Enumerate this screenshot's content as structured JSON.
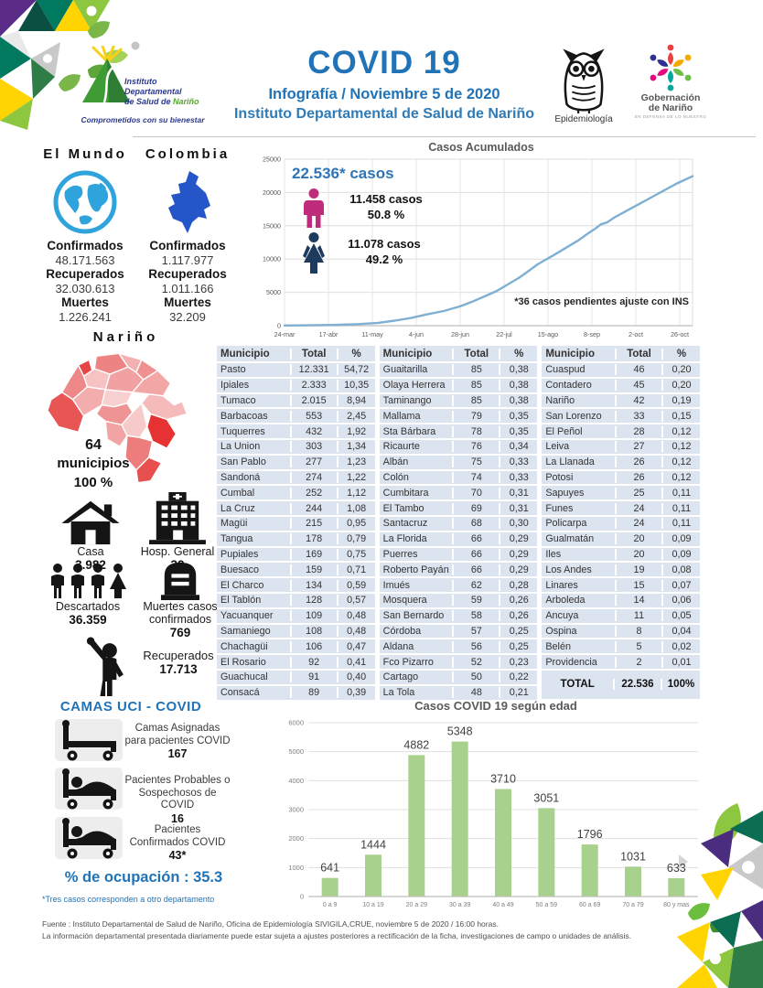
{
  "header": {
    "title": "COVID 19",
    "subtitle": "Infografía / Noviembre 5 de 2020",
    "subtitle2": "Instituto Departamental de Salud de Nariño",
    "idsn_logo": {
      "line1": "Instituto",
      "line2": "Departamental",
      "line3": "de Salud de",
      "line3b": "Nariño",
      "tagline": "Comprometidos con su bienestar"
    },
    "owl_caption": "Epidemiología",
    "gob_caption1": "Gobernación",
    "gob_caption2": "de Nariño",
    "gob_tagline": "EN DEFENSA DE LO NUESTRO"
  },
  "world": {
    "title": "El Mundo",
    "items": [
      {
        "label": "Confirmados",
        "value": "48.171.563"
      },
      {
        "label": "Recuperados",
        "value": "32.030.613"
      },
      {
        "label": "Muertes",
        "value": "1.226.241"
      }
    ]
  },
  "colombia": {
    "title": "Colombia",
    "items": [
      {
        "label": "Confirmados",
        "value": "1.117.977"
      },
      {
        "label": "Recuperados",
        "value": "1.011.166"
      },
      {
        "label": "Muertes",
        "value": "32.209"
      }
    ]
  },
  "gender": {
    "total": "22.536* casos",
    "male_cases": "11.458 casos",
    "male_pct": "50.8 %",
    "female_cases": "11.078 casos",
    "female_pct": "49.2 %",
    "note": "*36 casos pendientes ajuste con INS"
  },
  "narino": {
    "title": "Nariño",
    "muni_line1": "64",
    "muni_line2": "municipios",
    "muni_line3": "100 %",
    "casa_label": "Casa",
    "casa_value": "3.982",
    "hosp_label": "Hosp. General",
    "hosp_value": "32",
    "descartados_label": "Descartados",
    "descartados_value": "36.359",
    "muertes_label": "Muertes casos confirmados",
    "muertes_value": "769",
    "recuperados_label": "Recuperados",
    "recuperados_value": "17.713"
  },
  "camas": {
    "title": "CAMAS UCI - COVID",
    "items": [
      {
        "label": "Camas Asignadas para pacientes COVID",
        "value": "167"
      },
      {
        "label": "Pacientes Probables o Sospechosos de COVID",
        "value": "16"
      },
      {
        "label": "Pacientes Confirmados COVID",
        "value": "43*"
      }
    ],
    "ocupacion": "% de ocupación : 35.3",
    "note": "*Tres casos corresponden a otro departamento"
  },
  "table": {
    "headers": [
      "Municipio",
      "Total",
      "%"
    ],
    "groups": [
      [
        [
          "Pasto",
          "12.331",
          "54,72"
        ],
        [
          "Ipiales",
          "2.333",
          "10,35"
        ],
        [
          "Tumaco",
          "2.015",
          "8,94"
        ],
        [
          "Barbacoas",
          "553",
          "2,45"
        ],
        [
          "Tuquerres",
          "432",
          "1,92"
        ],
        [
          "La Union",
          "303",
          "1,34"
        ],
        [
          "San Pablo",
          "277",
          "1,23"
        ],
        [
          "Sandoná",
          "274",
          "1,22"
        ],
        [
          "Cumbal",
          "252",
          "1,12"
        ],
        [
          "La Cruz",
          "244",
          "1,08"
        ],
        [
          "Magüi",
          "215",
          "0,95"
        ],
        [
          "Tangua",
          "178",
          "0,79"
        ],
        [
          "Pupiales",
          "169",
          "0,75"
        ],
        [
          "Buesaco",
          "159",
          "0,71"
        ],
        [
          "El Charco",
          "134",
          "0,59"
        ],
        [
          "El Tablón",
          "128",
          "0,57"
        ],
        [
          "Yacuanquer",
          "109",
          "0,48"
        ],
        [
          "Samaniego",
          "108",
          "0,48"
        ],
        [
          "Chachagüi",
          "106",
          "0,47"
        ],
        [
          "El Rosario",
          "92",
          "0,41"
        ],
        [
          "Guachucal",
          "91",
          "0,40"
        ],
        [
          "Consacá",
          "89",
          "0,39"
        ]
      ],
      [
        [
          "Guaitarilla",
          "85",
          "0,38"
        ],
        [
          "Olaya Herrera",
          "85",
          "0,38"
        ],
        [
          "Taminango",
          "85",
          "0,38"
        ],
        [
          "Mallama",
          "79",
          "0,35"
        ],
        [
          "Sta Bárbara",
          "78",
          "0,35"
        ],
        [
          "Ricaurte",
          "76",
          "0,34"
        ],
        [
          "Albán",
          "75",
          "0,33"
        ],
        [
          "Colón",
          "74",
          "0,33"
        ],
        [
          "Cumbitara",
          "70",
          "0,31"
        ],
        [
          "El Tambo",
          "69",
          "0,31"
        ],
        [
          "Santacruz",
          "68",
          "0,30"
        ],
        [
          "La Florida",
          "66",
          "0,29"
        ],
        [
          "Puerres",
          "66",
          "0,29"
        ],
        [
          "Roberto Payán",
          "66",
          "0,29"
        ],
        [
          "Imués",
          "62",
          "0,28"
        ],
        [
          "Mosquera",
          "59",
          "0,26"
        ],
        [
          "San Bernardo",
          "58",
          "0,26"
        ],
        [
          "Córdoba",
          "57",
          "0,25"
        ],
        [
          "Aldana",
          "56",
          "0,25"
        ],
        [
          "Fco Pizarro",
          "52",
          "0,23"
        ],
        [
          "Cartago",
          "50",
          "0,22"
        ],
        [
          "La Tola",
          "48",
          "0,21"
        ]
      ],
      [
        [
          "Cuaspud",
          "46",
          "0,20"
        ],
        [
          "Contadero",
          "45",
          "0,20"
        ],
        [
          "Nariño",
          "42",
          "0,19"
        ],
        [
          "San Lorenzo",
          "33",
          "0,15"
        ],
        [
          "El Peñol",
          "28",
          "0,12"
        ],
        [
          "Leiva",
          "27",
          "0,12"
        ],
        [
          "La Llanada",
          "26",
          "0,12"
        ],
        [
          "Potosi",
          "26",
          "0,12"
        ],
        [
          "Sapuyes",
          "25",
          "0,11"
        ],
        [
          "Funes",
          "24",
          "0,11"
        ],
        [
          "Policarpa",
          "24",
          "0,11"
        ],
        [
          "Gualmatán",
          "20",
          "0,09"
        ],
        [
          "Iles",
          "20",
          "0,09"
        ],
        [
          "Los Andes",
          "19",
          "0,08"
        ],
        [
          "Linares",
          "15",
          "0,07"
        ],
        [
          "Arboleda",
          "14",
          "0,06"
        ],
        [
          "Ancuya",
          "11",
          "0,05"
        ],
        [
          "Ospina",
          "8",
          "0,04"
        ],
        [
          "Belén",
          "5",
          "0,02"
        ],
        [
          "Providencia",
          "2",
          "0,01"
        ]
      ]
    ],
    "total_row": {
      "label": "TOTAL",
      "total": "22.536",
      "pct": "100%"
    }
  },
  "chart_data": [
    {
      "type": "line",
      "title": "Casos Acumulados",
      "x": [
        "24-mar",
        "17-abr",
        "11-may",
        "4-jun",
        "28-jun",
        "22-jul",
        "15-ago",
        "8-sep",
        "2-oct",
        "26-oct"
      ],
      "ylim": [
        0,
        25000
      ],
      "yticks": [
        0,
        5000,
        10000,
        15000,
        20000,
        25000
      ],
      "grid": true,
      "annotation": "*36 casos pendientes ajuste con INS",
      "series": [
        {
          "name": "casos acumulados",
          "points": [
            [
              0,
              30
            ],
            [
              0.06,
              60
            ],
            [
              0.12,
              110
            ],
            [
              0.18,
              230
            ],
            [
              0.23,
              430
            ],
            [
              0.27,
              760
            ],
            [
              0.31,
              1150
            ],
            [
              0.35,
              1700
            ],
            [
              0.39,
              2200
            ],
            [
              0.43,
              2900
            ],
            [
              0.46,
              3600
            ],
            [
              0.49,
              4400
            ],
            [
              0.52,
              5200
            ],
            [
              0.55,
              6300
            ],
            [
              0.575,
              7200
            ],
            [
              0.6,
              8300
            ],
            [
              0.62,
              9200
            ],
            [
              0.64,
              9900
            ],
            [
              0.66,
              10600
            ],
            [
              0.69,
              11700
            ],
            [
              0.72,
              12800
            ],
            [
              0.745,
              13900
            ],
            [
              0.76,
              14500
            ],
            [
              0.775,
              15200
            ],
            [
              0.79,
              15500
            ],
            [
              0.81,
              16300
            ],
            [
              0.84,
              17300
            ],
            [
              0.87,
              18300
            ],
            [
              0.9,
              19300
            ],
            [
              0.93,
              20300
            ],
            [
              0.96,
              21300
            ],
            [
              1,
              22450
            ]
          ]
        }
      ]
    },
    {
      "type": "bar",
      "title": "Casos COVID 19 según edad",
      "categories": [
        "0 a 9",
        "10 a 19",
        "20 a 29",
        "30 a 39",
        "40 a 49",
        "50 a 59",
        "60 a 69",
        "70 a 79",
        "80 y mas"
      ],
      "values": [
        641,
        1444,
        4882,
        5348,
        3710,
        3051,
        1796,
        1031,
        633
      ],
      "ylim": [
        0,
        6000
      ],
      "yticks": [
        0,
        1000,
        2000,
        3000,
        4000,
        5000,
        6000
      ],
      "grid": true
    }
  ],
  "footer": {
    "line1": "Fuente : Instituto Departamental de Salud de Nariño, Oficina de Epidemiología SIVIGILA,CRUE,  noviembre 5 de 2020 / 16:00 horas.",
    "line2": "La información departamental presentada diariamente puede estar sujeta a ajustes posteriores a rectificación de la ficha, investigaciones de campo o unidades de análisis."
  },
  "colors": {
    "accent_blue": "#2173b8",
    "chart_line_blue": "#7fafd2",
    "male_pink": "#c02c7c",
    "female_navy": "#1d3a5f",
    "bar_green": "#a9d18e",
    "table_row_bg": "#dce4f0",
    "map_highlight_red": "#e63232"
  }
}
